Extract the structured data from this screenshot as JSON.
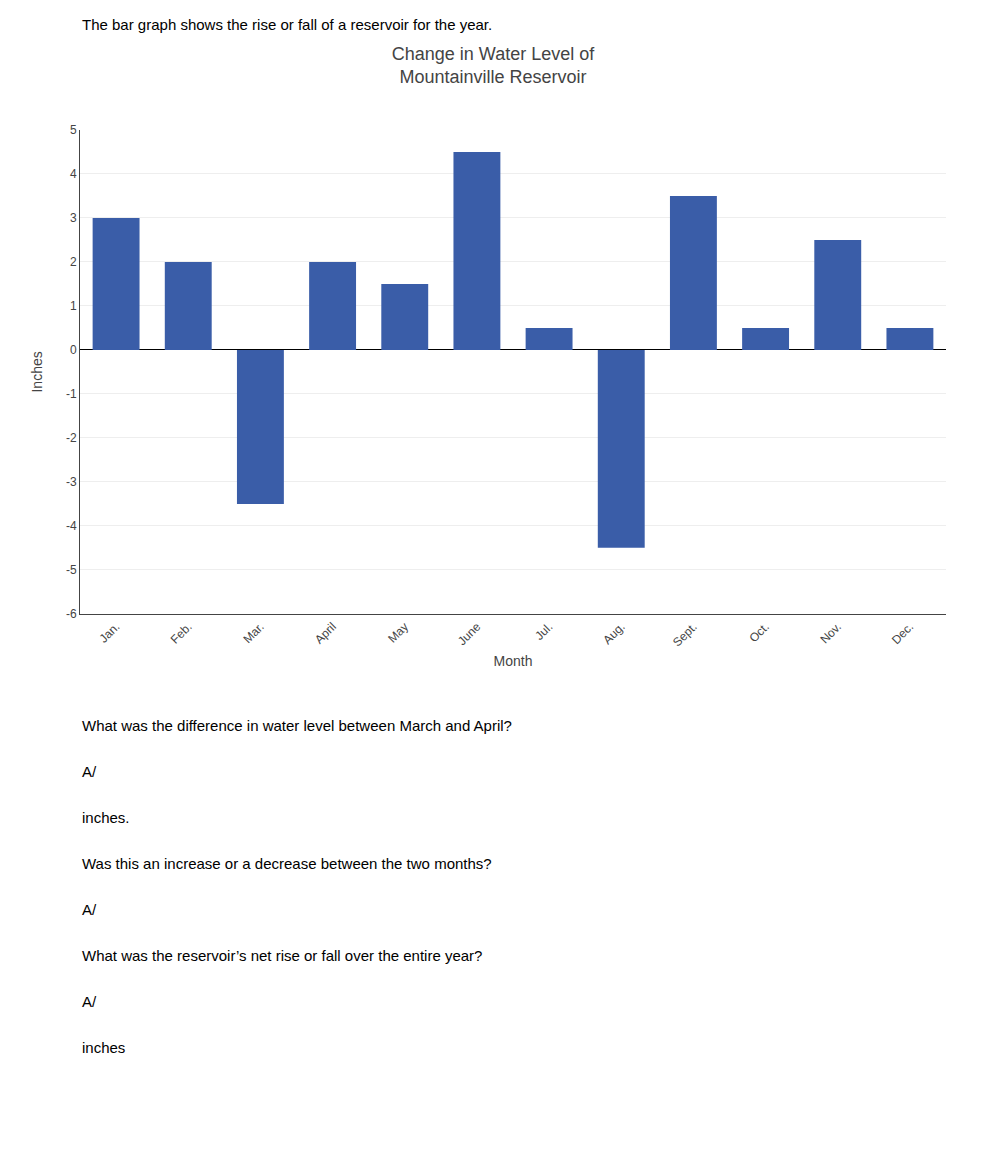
{
  "chart_data": {
    "type": "bar",
    "title": "Change in Water Level of\nMountainville Reservoir",
    "subtitle": "The bar graph shows the rise or fall of a reservoir for the year.",
    "xlabel": "Month",
    "ylabel": "Inches",
    "categories": [
      "Jan.",
      "Feb.",
      "Mar.",
      "April",
      "May",
      "June",
      "Jul.",
      "Aug.",
      "Sept.",
      "Oct.",
      "Nov.",
      "Dec."
    ],
    "values": [
      3,
      2,
      -3.5,
      2,
      1.5,
      4.5,
      0.5,
      -4.5,
      3.5,
      0.5,
      2.5,
      0.5
    ],
    "color": "#3A5DA8",
    "ylim": [
      -6,
      5
    ],
    "yticks": [
      -6,
      -5,
      -4,
      -3,
      -2,
      -1,
      0,
      1,
      2,
      3,
      4,
      5
    ],
    "grid": true,
    "annotations": [
      "What was the difference in water level between March and April?",
      "A/",
      "inches.",
      "Was this an increase or a decrease between the two months?",
      "A/",
      "What was the reservoir’s net rise or fall over the entire year?",
      "A/",
      "inches"
    ]
  }
}
